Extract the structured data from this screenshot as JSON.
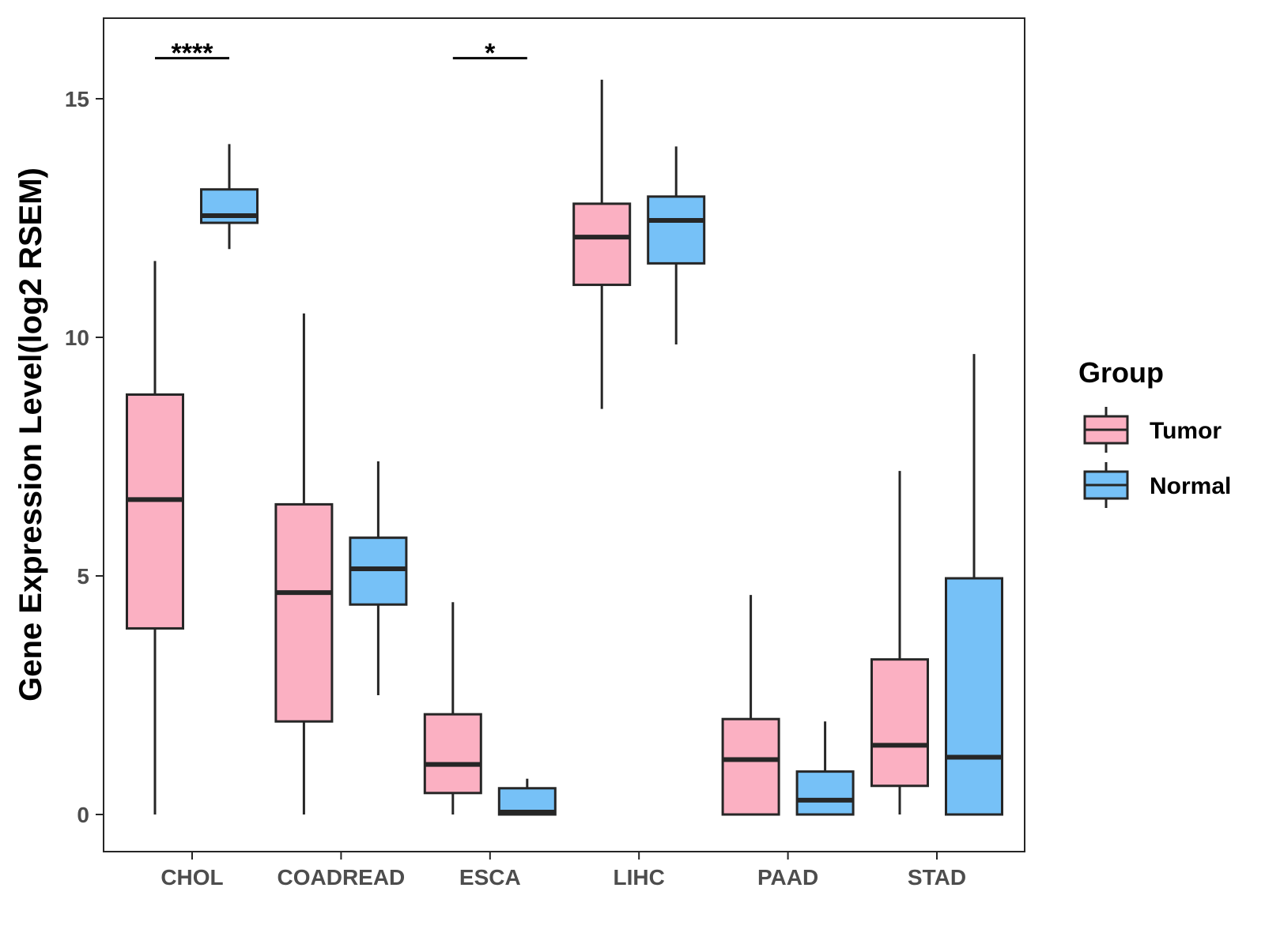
{
  "chart_data": {
    "type": "boxplot",
    "title": "",
    "xlabel": "",
    "ylabel": "Gene Expression Level(log2 RSEM)",
    "ylim": [
      -0.8,
      16.7
    ],
    "yticks": [
      0,
      5,
      10,
      15
    ],
    "categories": [
      "CHOL",
      "COADREAD",
      "ESCA",
      "LIHC",
      "PAAD",
      "STAD"
    ],
    "legend": {
      "title": "Group",
      "position": "right",
      "entries": [
        "Tumor",
        "Normal"
      ]
    },
    "colors": {
      "Tumor": "#FBB0C2",
      "Normal": "#76C1F7",
      "outline": "#262626"
    },
    "series": [
      {
        "name": "Tumor",
        "boxes": [
          {
            "category": "CHOL",
            "min": 0.0,
            "q1": 3.9,
            "median": 6.6,
            "q3": 8.8,
            "max": 11.6
          },
          {
            "category": "COADREAD",
            "min": 0.0,
            "q1": 1.95,
            "median": 4.65,
            "q3": 6.5,
            "max": 10.5
          },
          {
            "category": "ESCA",
            "min": 0.0,
            "q1": 0.45,
            "median": 1.05,
            "q3": 2.1,
            "max": 4.45
          },
          {
            "category": "LIHC",
            "min": 8.5,
            "q1": 11.1,
            "median": 12.1,
            "q3": 12.8,
            "max": 15.4
          },
          {
            "category": "PAAD",
            "min": 0.0,
            "q1": 0.0,
            "median": 1.15,
            "q3": 2.0,
            "max": 4.6
          },
          {
            "category": "STAD",
            "min": 0.0,
            "q1": 0.6,
            "median": 1.45,
            "q3": 3.25,
            "max": 7.2
          }
        ]
      },
      {
        "name": "Normal",
        "boxes": [
          {
            "category": "CHOL",
            "min": 11.85,
            "q1": 12.4,
            "median": 12.55,
            "q3": 13.1,
            "max": 14.05
          },
          {
            "category": "COADREAD",
            "min": 2.5,
            "q1": 4.4,
            "median": 5.15,
            "q3": 5.8,
            "max": 7.4
          },
          {
            "category": "ESCA",
            "min": 0.0,
            "q1": 0.0,
            "median": 0.05,
            "q3": 0.55,
            "max": 0.75
          },
          {
            "category": "LIHC",
            "min": 9.85,
            "q1": 11.55,
            "median": 12.45,
            "q3": 12.95,
            "max": 14.0
          },
          {
            "category": "PAAD",
            "min": 0.0,
            "q1": 0.0,
            "median": 0.3,
            "q3": 0.9,
            "max": 1.95
          },
          {
            "category": "STAD",
            "min": 0.0,
            "q1": 0.0,
            "median": 1.2,
            "q3": 4.95,
            "max": 9.65
          }
        ]
      }
    ],
    "annotations": [
      {
        "category": "CHOL",
        "label": "****",
        "y": 15.85
      },
      {
        "category": "ESCA",
        "label": "*",
        "y": 15.85
      }
    ]
  }
}
